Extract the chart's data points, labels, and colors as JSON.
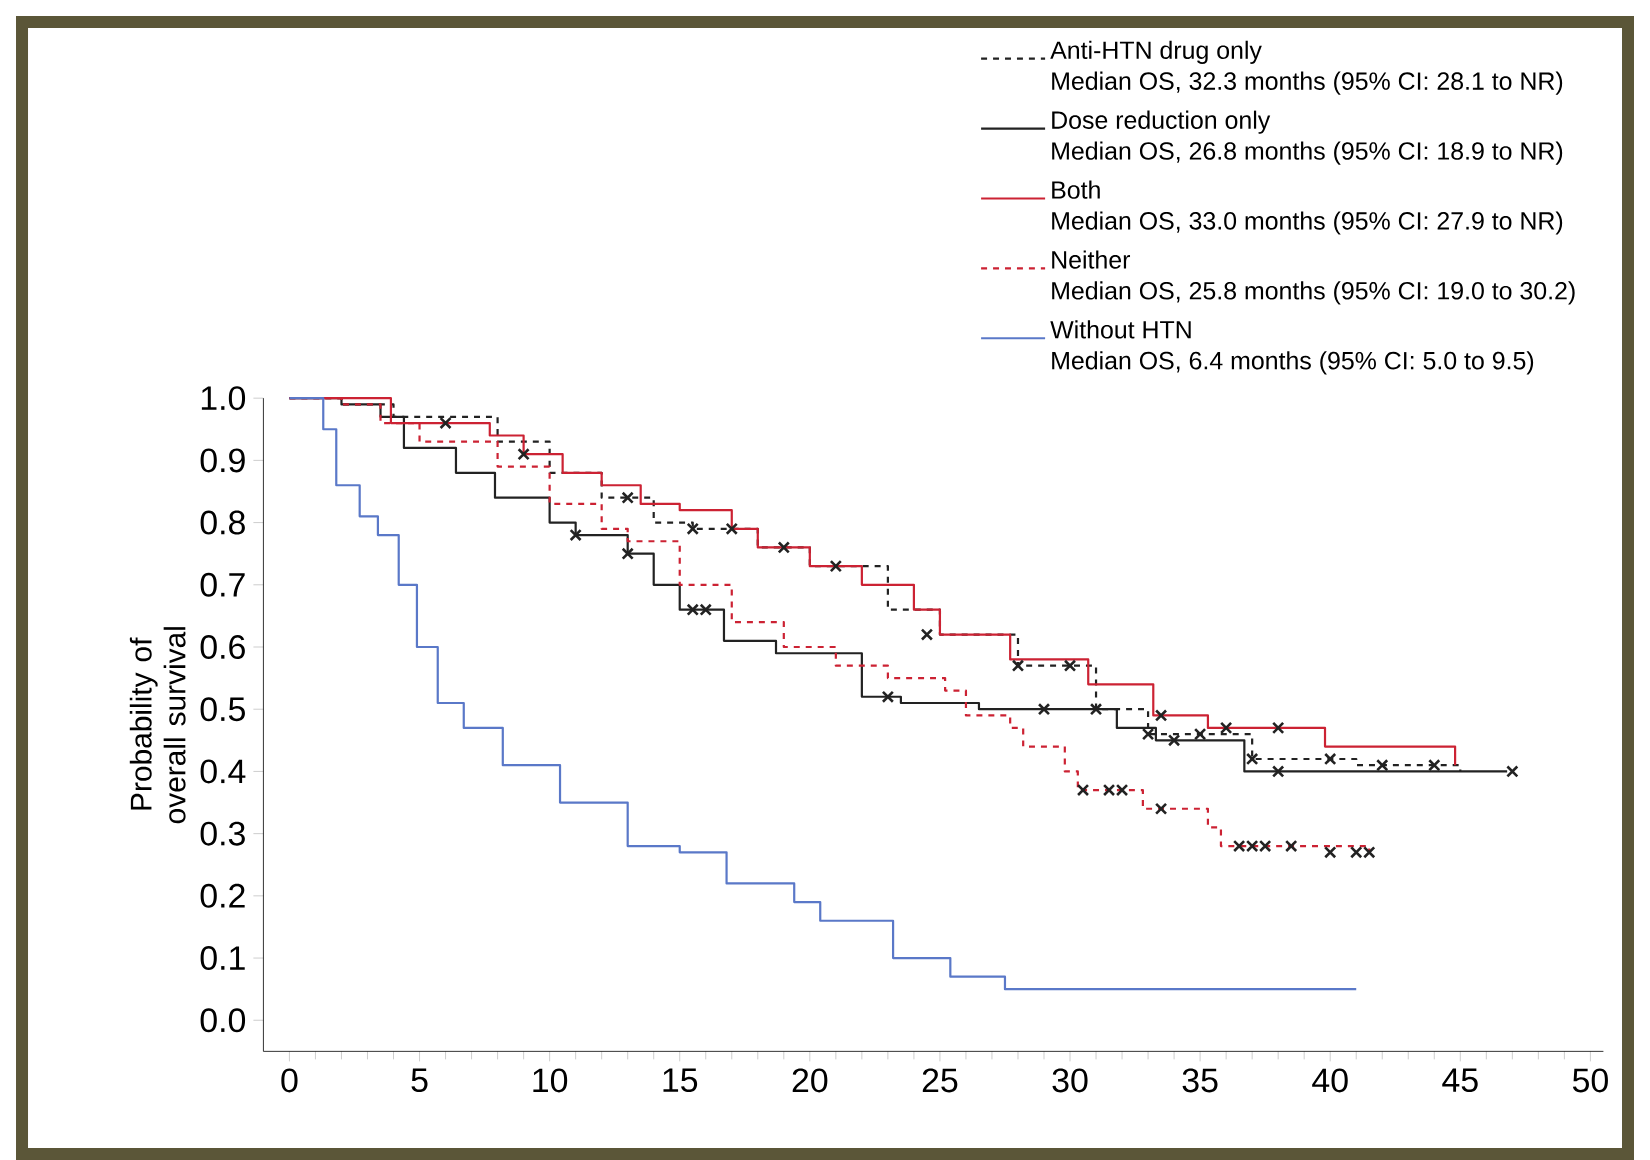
{
  "chart_data": {
    "type": "step",
    "ylabel": "Probability of overall survival",
    "xlim": [
      -1,
      50.5
    ],
    "ylim": [
      -0.05,
      1.0
    ],
    "xticks": [
      0,
      5,
      10,
      15,
      20,
      25,
      30,
      35,
      40,
      45,
      50
    ],
    "yticks": [
      {
        "value": 0,
        "label": "0.0"
      },
      {
        "value": 0.1,
        "label": "0.1"
      },
      {
        "value": 0.2,
        "label": "0.2"
      },
      {
        "value": 0.3,
        "label": "0.3"
      },
      {
        "value": 0.4,
        "label": "0.4"
      },
      {
        "value": 0.5,
        "label": "0.5"
      },
      {
        "value": 0.6,
        "label": "0.6"
      },
      {
        "value": 0.7,
        "label": "0.7"
      },
      {
        "value": 0.8,
        "label": "0.8"
      },
      {
        "value": 0.9,
        "label": "0.9"
      },
      {
        "value": 1.0,
        "label": "1.0"
      }
    ],
    "legend": "top right",
    "annotations": [
      "Median OS, 32.3 months (95% CI: 28.1 to NR)",
      "Median OS, 26.8 months (95% CI: 18.9 to NR)",
      "Median OS, 33.0 months (95% CI: 27.9 to NR)",
      "Median OS, 25.8 months (95% CI: 19.0 to 30.2)",
      "Median OS, 6.4 months (95% CI: 5.0 to 9.5)"
    ],
    "series": [
      {
        "name": "Anti-HTN drug only",
        "color": "#222222",
        "line_style": "dashed",
        "x": [
          0,
          2,
          4,
          8,
          10,
          12,
          14,
          15.5,
          18,
          20,
          23,
          25,
          28,
          31,
          33,
          37,
          41,
          45
        ],
        "values": [
          1,
          0.99,
          0.97,
          0.93,
          0.88,
          0.84,
          0.8,
          0.79,
          0.76,
          0.73,
          0.66,
          0.62,
          0.57,
          0.5,
          0.46,
          0.42,
          0.41,
          0.4
        ]
      },
      {
        "name": "Dose reduction only",
        "color": "#222222",
        "line_style": "solid",
        "x": [
          0,
          2,
          3.5,
          4.4,
          6.4,
          7.9,
          10,
          11,
          13,
          14,
          15,
          16.7,
          18.7,
          22,
          23.5,
          26.5,
          31.8,
          33.3,
          36.7,
          46.8
        ],
        "values": [
          1,
          0.99,
          0.97,
          0.92,
          0.88,
          0.84,
          0.8,
          0.78,
          0.75,
          0.7,
          0.66,
          0.61,
          0.59,
          0.52,
          0.51,
          0.5,
          0.47,
          0.45,
          0.4,
          0.4
        ]
      },
      {
        "name": "Both",
        "color": "#cc2233",
        "line_style": "solid",
        "x": [
          0,
          3.9,
          7.7,
          9,
          10.5,
          12,
          13.5,
          15,
          17,
          18,
          20,
          22,
          24,
          25,
          27.7,
          30.7,
          33.2,
          35.3,
          39.8,
          44.8
        ],
        "values": [
          1,
          0.96,
          0.94,
          0.91,
          0.88,
          0.86,
          0.83,
          0.82,
          0.79,
          0.76,
          0.73,
          0.7,
          0.66,
          0.62,
          0.58,
          0.54,
          0.49,
          0.47,
          0.44,
          0.41
        ]
      },
      {
        "name": "Neither",
        "color": "#cc2233",
        "line_style": "dashed",
        "x": [
          0,
          2,
          3.5,
          5,
          8,
          10,
          12,
          13,
          15,
          17,
          19,
          21,
          23,
          25.2,
          26,
          27.7,
          28.2,
          29.8,
          30.3,
          32.8,
          35.3,
          35.8,
          41.5
        ],
        "values": [
          1,
          0.99,
          0.96,
          0.93,
          0.89,
          0.83,
          0.79,
          0.77,
          0.7,
          0.64,
          0.6,
          0.57,
          0.55,
          0.53,
          0.49,
          0.47,
          0.44,
          0.4,
          0.37,
          0.34,
          0.31,
          0.28,
          0.27
        ]
      },
      {
        "name": "Without HTN",
        "color": "#5a78c8",
        "line_style": "solid",
        "x": [
          0,
          1.3,
          1.8,
          2.7,
          3.4,
          4.2,
          4.9,
          5.7,
          6.7,
          8.2,
          10.4,
          13,
          15,
          16.8,
          19.4,
          20.4,
          23.2,
          25.4,
          27.5,
          41
        ],
        "values": [
          1,
          0.95,
          0.86,
          0.81,
          0.78,
          0.7,
          0.6,
          0.51,
          0.47,
          0.41,
          0.35,
          0.28,
          0.27,
          0.22,
          0.19,
          0.16,
          0.1,
          0.07,
          0.05,
          0.05
        ]
      },
      {
        "type": "scatter",
        "marker": "cross",
        "color": "#222222",
        "x": [
          13,
          15.5,
          17,
          21,
          28,
          30,
          33,
          35,
          37,
          40,
          42,
          44
        ],
        "values": [
          0.84,
          0.79,
          0.79,
          0.73,
          0.57,
          0.57,
          0.46,
          0.46,
          0.42,
          0.42,
          0.41,
          0.41
        ]
      },
      {
        "type": "scatter",
        "marker": "cross",
        "color": "#222222",
        "x": [
          6,
          9,
          19,
          24.5,
          33.5,
          36,
          38
        ],
        "values": [
          0.96,
          0.91,
          0.76,
          0.62,
          0.49,
          0.47,
          0.47
        ]
      },
      {
        "type": "scatter",
        "marker": "cross",
        "color": "#222222",
        "x": [
          11,
          13,
          15.5,
          16,
          23,
          29,
          31,
          34,
          38,
          47
        ],
        "values": [
          0.78,
          0.75,
          0.66,
          0.66,
          0.52,
          0.5,
          0.5,
          0.45,
          0.4,
          0.4
        ]
      },
      {
        "type": "scatter",
        "marker": "cross",
        "color": "#222222",
        "x": [
          30.5,
          31.5,
          32,
          33.5,
          36.5,
          37,
          37.5,
          38.5,
          40,
          41,
          41.5
        ],
        "values": [
          0.37,
          0.37,
          0.37,
          0.34,
          0.28,
          0.28,
          0.28,
          0.28,
          0.27,
          0.27,
          0.27
        ]
      }
    ]
  }
}
